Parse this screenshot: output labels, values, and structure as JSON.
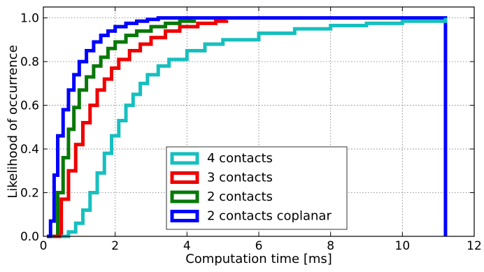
{
  "chart_data": {
    "type": "line",
    "step": true,
    "xlabel": "Computation time [ms]",
    "ylabel": "Likelihood of occurrence",
    "xlim": [
      0,
      12
    ],
    "ylim": [
      0,
      1.05
    ],
    "xticks": [
      0,
      2,
      4,
      6,
      8,
      10,
      12
    ],
    "yticks": [
      0.0,
      0.2,
      0.4,
      0.6,
      0.8,
      1.0
    ],
    "xtick_labels": [
      "0",
      "2",
      "4",
      "6",
      "8",
      "10",
      "12"
    ],
    "ytick_labels": [
      "0.0",
      "0.2",
      "0.4",
      "0.6",
      "0.8",
      "1.0"
    ],
    "grid": true,
    "legend_position": "lower-center",
    "series": [
      {
        "name": "4 contacts",
        "color": "#17bfbf",
        "x": [
          0.5,
          0.7,
          0.9,
          1.1,
          1.3,
          1.5,
          1.7,
          1.9,
          2.1,
          2.3,
          2.5,
          2.7,
          2.9,
          3.2,
          3.5,
          4.0,
          4.5,
          5.0,
          6.0,
          7.0,
          8.0,
          9.0,
          10.0,
          11.2
        ],
        "y": [
          0.0,
          0.02,
          0.06,
          0.12,
          0.2,
          0.29,
          0.38,
          0.46,
          0.53,
          0.6,
          0.65,
          0.7,
          0.74,
          0.78,
          0.81,
          0.85,
          0.88,
          0.9,
          0.93,
          0.95,
          0.965,
          0.975,
          0.985,
          1.0
        ]
      },
      {
        "name": "3 contacts",
        "color": "#ee0000",
        "x": [
          0.3,
          0.5,
          0.7,
          0.9,
          1.1,
          1.3,
          1.5,
          1.7,
          1.9,
          2.1,
          2.4,
          2.7,
          3.0,
          3.4,
          3.8,
          4.3,
          4.8,
          5.1
        ],
        "y": [
          0.0,
          0.17,
          0.3,
          0.42,
          0.52,
          0.6,
          0.67,
          0.72,
          0.77,
          0.81,
          0.85,
          0.88,
          0.91,
          0.94,
          0.96,
          0.975,
          0.985,
          0.99
        ]
      },
      {
        "name": "2 contacts",
        "color": "#087808",
        "x": [
          0.25,
          0.4,
          0.55,
          0.7,
          0.85,
          1.0,
          1.2,
          1.4,
          1.6,
          1.8,
          2.0,
          2.3,
          2.6,
          3.0,
          3.4,
          3.8,
          4.2
        ],
        "y": [
          0.0,
          0.2,
          0.36,
          0.49,
          0.59,
          0.67,
          0.73,
          0.78,
          0.82,
          0.86,
          0.89,
          0.92,
          0.94,
          0.96,
          0.975,
          0.985,
          0.995
        ]
      },
      {
        "name": "2 contacts coplanar",
        "color": "#0000ff",
        "x": [
          0.1,
          0.2,
          0.3,
          0.4,
          0.55,
          0.7,
          0.85,
          1.0,
          1.2,
          1.4,
          1.6,
          1.8,
          2.0,
          2.3,
          2.6,
          2.9,
          3.2,
          11.2
        ],
        "y": [
          0.0,
          0.07,
          0.28,
          0.46,
          0.58,
          0.67,
          0.74,
          0.8,
          0.85,
          0.89,
          0.92,
          0.94,
          0.96,
          0.975,
          0.985,
          0.993,
          1.0,
          0.0
        ]
      }
    ]
  }
}
